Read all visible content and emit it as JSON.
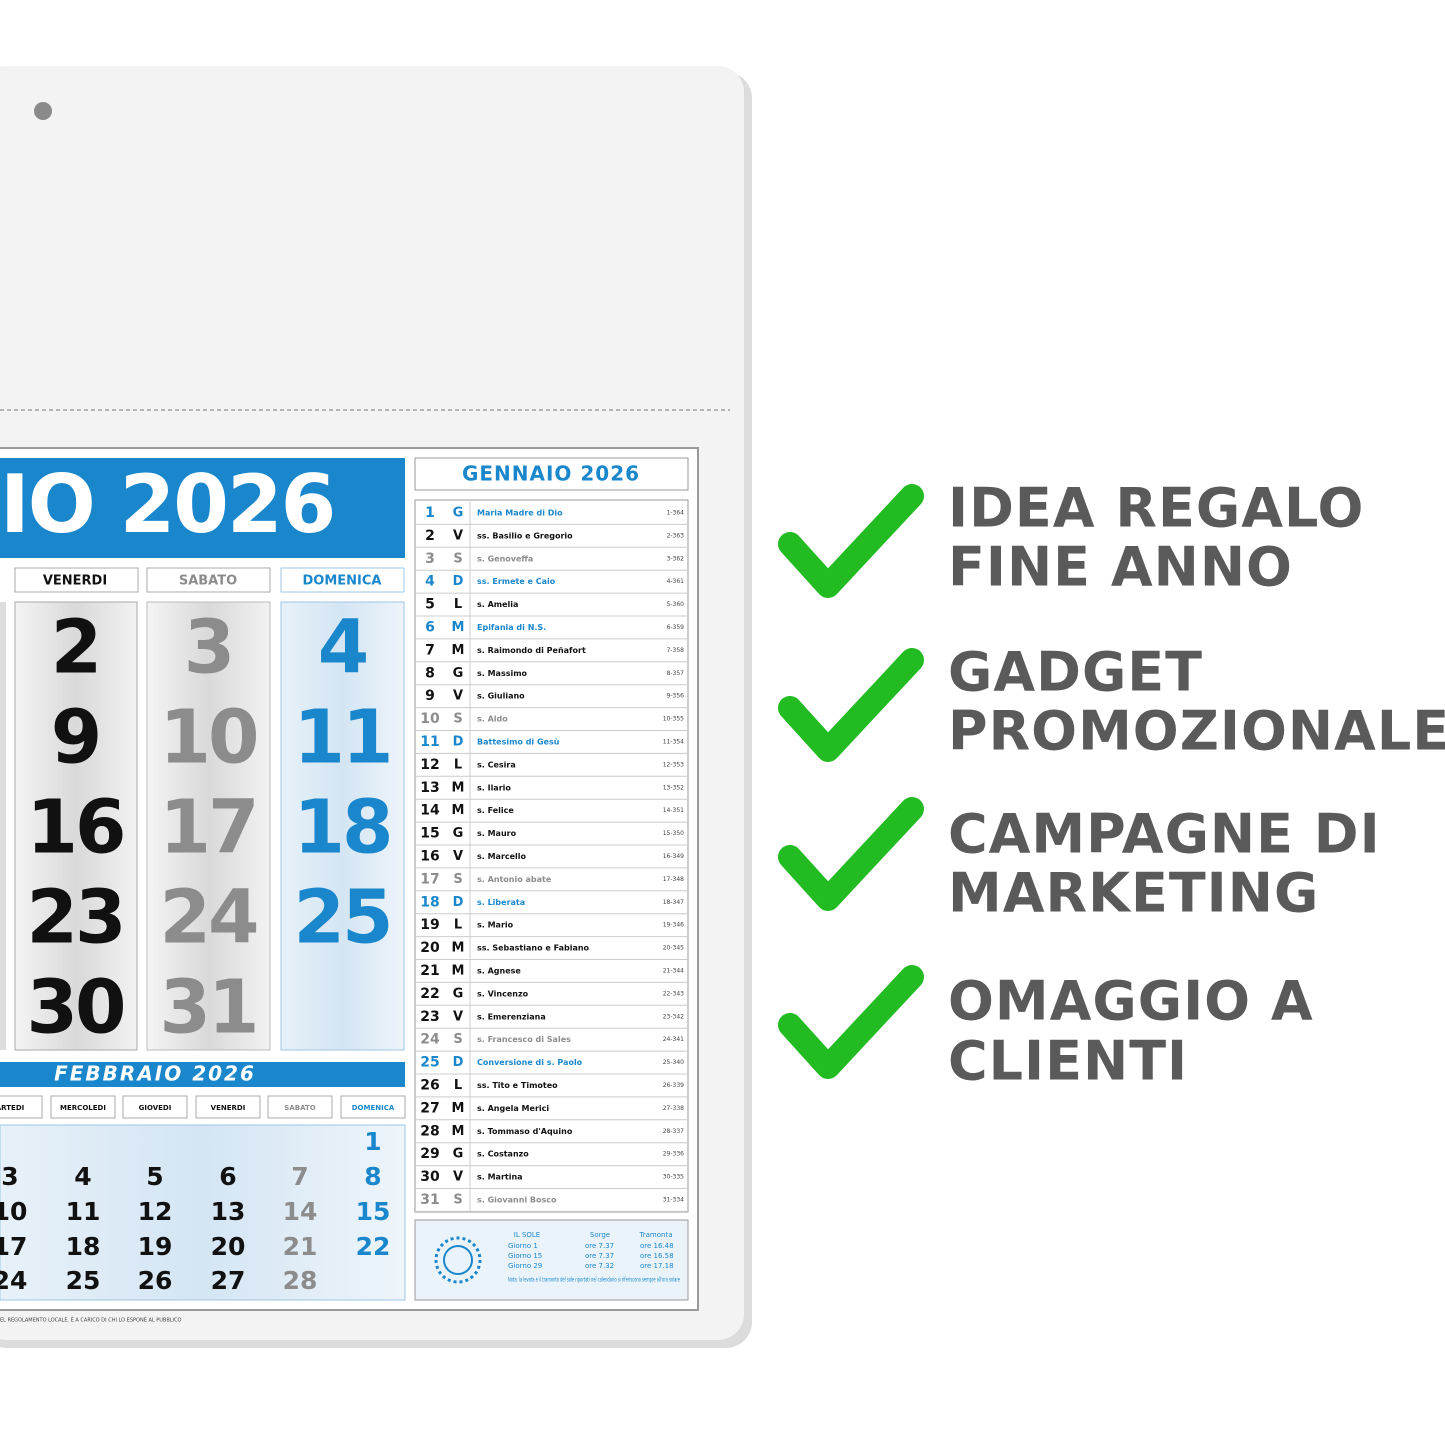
{
  "calendar": {
    "month_title": "IO 2026",
    "columns": [
      {
        "header": "VENERDI",
        "color": "#111111",
        "days": [
          "2",
          "9",
          "16",
          "23",
          "30"
        ]
      },
      {
        "header": "SABATO",
        "color": "#8c8c8c",
        "days": [
          "3",
          "10",
          "17",
          "24",
          "31"
        ]
      },
      {
        "header": "DOMENICA",
        "color": "#1a87cc",
        "days": [
          "4",
          "11",
          "18",
          "25"
        ]
      }
    ],
    "feb_title": "FEBBRAIO 2026",
    "feb_headers": [
      "ARTEDI",
      "MERCOLEDI",
      "GIOVEDI",
      "VENERDI",
      "SABATO",
      "DOMENICA"
    ],
    "feb_colors": [
      "#111111",
      "#111111",
      "#111111",
      "#111111",
      "#8c8c8c",
      "#1a87cc"
    ],
    "feb_weeks": [
      [
        null,
        null,
        null,
        null,
        null,
        "1"
      ],
      [
        "3",
        "4",
        "5",
        "6",
        "7",
        "8"
      ],
      [
        "10",
        "11",
        "12",
        "13",
        "14",
        "15"
      ],
      [
        "17",
        "18",
        "19",
        "20",
        "21",
        "22"
      ],
      [
        "24",
        "25",
        "26",
        "27",
        "28",
        null
      ]
    ],
    "list_title": "GENNAIO 2026",
    "list": [
      {
        "day": "1",
        "wd": "G",
        "name": "Maria Madre di Dio",
        "yd": "1-364",
        "color": "#1a87cc"
      },
      {
        "day": "2",
        "wd": "V",
        "name": "ss. Basilio e Gregorio",
        "yd": "2-363",
        "color": "#111111"
      },
      {
        "day": "3",
        "wd": "S",
        "name": "s. Genoveffa",
        "yd": "3-362",
        "color": "#8c8c8c"
      },
      {
        "day": "4",
        "wd": "D",
        "name": "ss. Ermete e Caio",
        "yd": "4-361",
        "color": "#1a87cc"
      },
      {
        "day": "5",
        "wd": "L",
        "name": "s. Amelia",
        "yd": "5-360",
        "color": "#111111"
      },
      {
        "day": "6",
        "wd": "M",
        "name": "Epifania di N.S.",
        "yd": "6-359",
        "color": "#1a87cc"
      },
      {
        "day": "7",
        "wd": "M",
        "name": "s. Raimondo di Peñafort",
        "yd": "7-358",
        "color": "#111111"
      },
      {
        "day": "8",
        "wd": "G",
        "name": "s. Massimo",
        "yd": "8-357",
        "color": "#111111"
      },
      {
        "day": "9",
        "wd": "V",
        "name": "s. Giuliano",
        "yd": "9-356",
        "color": "#111111"
      },
      {
        "day": "10",
        "wd": "S",
        "name": "s. Aldo",
        "yd": "10-355",
        "color": "#8c8c8c"
      },
      {
        "day": "11",
        "wd": "D",
        "name": "Battesimo di Gesù",
        "yd": "11-354",
        "color": "#1a87cc"
      },
      {
        "day": "12",
        "wd": "L",
        "name": "s. Cesira",
        "yd": "12-353",
        "color": "#111111"
      },
      {
        "day": "13",
        "wd": "M",
        "name": "s. Ilario",
        "yd": "13-352",
        "color": "#111111"
      },
      {
        "day": "14",
        "wd": "M",
        "name": "s. Felice",
        "yd": "14-351",
        "color": "#111111"
      },
      {
        "day": "15",
        "wd": "G",
        "name": "s. Mauro",
        "yd": "15-350",
        "color": "#111111"
      },
      {
        "day": "16",
        "wd": "V",
        "name": "s. Marcello",
        "yd": "16-349",
        "color": "#111111"
      },
      {
        "day": "17",
        "wd": "S",
        "name": "s. Antonio abate",
        "yd": "17-348",
        "color": "#8c8c8c"
      },
      {
        "day": "18",
        "wd": "D",
        "name": "s. Liberata",
        "yd": "18-347",
        "color": "#1a87cc"
      },
      {
        "day": "19",
        "wd": "L",
        "name": "s. Mario",
        "yd": "19-346",
        "color": "#111111"
      },
      {
        "day": "20",
        "wd": "M",
        "name": "ss. Sebastiano e Fabiano",
        "yd": "20-345",
        "color": "#111111"
      },
      {
        "day": "21",
        "wd": "M",
        "name": "s. Agnese",
        "yd": "21-344",
        "color": "#111111"
      },
      {
        "day": "22",
        "wd": "G",
        "name": "s. Vincenzo",
        "yd": "22-343",
        "color": "#111111"
      },
      {
        "day": "23",
        "wd": "V",
        "name": "s. Emerenziana",
        "yd": "23-342",
        "color": "#111111"
      },
      {
        "day": "24",
        "wd": "S",
        "name": "s. Francesco di Sales",
        "yd": "24-341",
        "color": "#8c8c8c"
      },
      {
        "day": "25",
        "wd": "D",
        "name": "Conversione di s. Paolo",
        "yd": "25-340",
        "color": "#1a87cc"
      },
      {
        "day": "26",
        "wd": "L",
        "name": "ss. Tito e Timoteo",
        "yd": "26-339",
        "color": "#111111"
      },
      {
        "day": "27",
        "wd": "M",
        "name": "s. Angela Merici",
        "yd": "27-338",
        "color": "#111111"
      },
      {
        "day": "28",
        "wd": "M",
        "name": "s. Tommaso d'Aquino",
        "yd": "28-337",
        "color": "#111111"
      },
      {
        "day": "29",
        "wd": "G",
        "name": "s. Costanzo",
        "yd": "29-336",
        "color": "#111111"
      },
      {
        "day": "30",
        "wd": "V",
        "name": "s. Martina",
        "yd": "30-335",
        "color": "#111111"
      },
      {
        "day": "31",
        "wd": "S",
        "name": "s. Giovanni Bosco",
        "yd": "31-334",
        "color": "#8c8c8c"
      }
    ],
    "sun": {
      "title": "IL SOLE",
      "rise": "Sorge",
      "set": "Tramonta",
      "rows": [
        [
          "Giorno 1",
          "ore 7.37",
          "ore 16.48"
        ],
        [
          "Giorno 15",
          "ore 7.37",
          "ore 16.58"
        ],
        [
          "Giorno 29",
          "ore 7.32",
          "ore 17.18"
        ]
      ],
      "note": "Nota: la levata e il tramonto del sole riportati nel calendario si riferiscono sempre all'ora solare"
    },
    "footer": "EL REGOLAMENTO LOCALE. È A CARICO DI CHI LO ESPONE AL PUBBLICO"
  },
  "features": [
    [
      "IDEA REGALO",
      "FINE ANNO"
    ],
    [
      "GADGET",
      "PROMOZIONALE"
    ],
    [
      "CAMPAGNE DI",
      "MARKETING"
    ],
    [
      "OMAGGIO A",
      "CLIENTI"
    ]
  ]
}
